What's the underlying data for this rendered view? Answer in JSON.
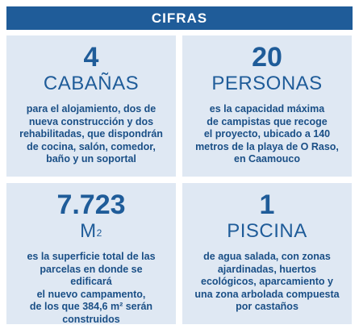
{
  "header": {
    "title": "CIFRAS"
  },
  "cells": [
    {
      "number": "4",
      "unit": "CABAÑAS",
      "unit_sup": "",
      "lines": [
        "para el alojamiento, dos de",
        "nueva construcción y dos",
        "rehabilitadas, que dispondrán",
        "de cocina, salón, comedor,",
        "baño y un soportal"
      ]
    },
    {
      "number": "20",
      "unit": "PERSONAS",
      "unit_sup": "",
      "lines": [
        "es la capacidad máxima",
        "de campistas que recoge",
        "el proyecto, ubicado a 140",
        "metros de la playa de O Raso,",
        "en Caamouco"
      ]
    },
    {
      "number": "7.723",
      "unit": "M",
      "unit_sup": "2",
      "lines": [
        "es la superficie total de las",
        "parcelas en donde se edificará",
        "el nuevo campamento,",
        "de los que 384,6 m² serán",
        "construidos"
      ]
    },
    {
      "number": "1",
      "unit": "PISCINA",
      "unit_sup": "",
      "lines": [
        "de agua salada, con zonas",
        "ajardinadas, huertos",
        "ecológicos, aparcamiento y",
        "una zona arbolada compuesta",
        "por castaños"
      ]
    }
  ],
  "colors": {
    "header_bg": "#1f5c99",
    "cell_bg": "#dfe8f3",
    "text": "#1f5c99"
  }
}
